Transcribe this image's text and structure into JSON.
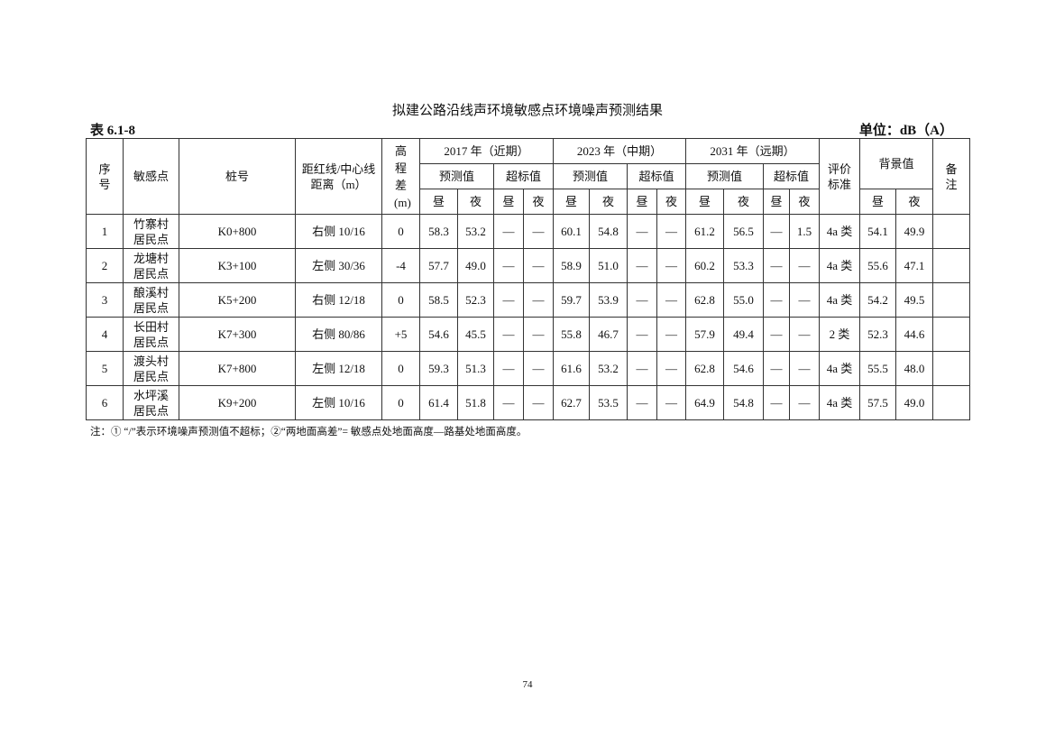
{
  "title": "拟建公路沿线声环境敏感点环境噪声预测结果",
  "table_no": "表 6.1-8",
  "unit": "单位：dB（A）",
  "headers": {
    "seq": "序号",
    "point": "敏感点",
    "stake": "桩号",
    "distance": "距红线/中心线距离（m）",
    "height": "高程差(m)",
    "p2017": "2017 年（近期）",
    "p2023": "2023 年（中期）",
    "p2031": "2031 年（远期）",
    "pred": "预测值",
    "exceed": "超标值",
    "day": "昼",
    "night": "夜",
    "standard": "评价标准",
    "background": "背景值",
    "remark": "备注"
  },
  "rows": [
    [
      "1",
      "竹寨村居民点",
      "K0+800",
      "右侧 10/16",
      "0",
      "58.3",
      "53.2",
      "—",
      "—",
      "60.1",
      "54.8",
      "—",
      "—",
      "61.2",
      "56.5",
      "—",
      "1.5",
      "4a 类",
      "54.1",
      "49.9",
      ""
    ],
    [
      "2",
      "龙塘村居民点",
      "K3+100",
      "左侧 30/36",
      "-4",
      "57.7",
      "49.0",
      "—",
      "—",
      "58.9",
      "51.0",
      "—",
      "—",
      "60.2",
      "53.3",
      "—",
      "—",
      "4a 类",
      "55.6",
      "47.1",
      ""
    ],
    [
      "3",
      "酿溪村居民点",
      "K5+200",
      "右侧 12/18",
      "0",
      "58.5",
      "52.3",
      "—",
      "—",
      "59.7",
      "53.9",
      "—",
      "—",
      "62.8",
      "55.0",
      "—",
      "—",
      "4a 类",
      "54.2",
      "49.5",
      ""
    ],
    [
      "4",
      "长田村居民点",
      "K7+300",
      "右侧 80/86",
      "+5",
      "54.6",
      "45.5",
      "—",
      "—",
      "55.8",
      "46.7",
      "—",
      "—",
      "57.9",
      "49.4",
      "—",
      "—",
      "2 类",
      "52.3",
      "44.6",
      ""
    ],
    [
      "5",
      "渡头村居民点",
      "K7+800",
      "左侧 12/18",
      "0",
      "59.3",
      "51.3",
      "—",
      "—",
      "61.6",
      "53.2",
      "—",
      "—",
      "62.8",
      "54.6",
      "—",
      "—",
      "4a 类",
      "55.5",
      "48.0",
      ""
    ],
    [
      "6",
      "水坪溪居民点",
      "K9+200",
      "左侧 10/16",
      "0",
      "61.4",
      "51.8",
      "—",
      "—",
      "62.7",
      "53.5",
      "—",
      "—",
      "64.9",
      "54.8",
      "—",
      "—",
      "4a 类",
      "57.5",
      "49.0",
      ""
    ]
  ],
  "note": "注：① “/”表示环境噪声预测值不超标；②“两地面高差”= 敏感点处地面高度—路基处地面高度。",
  "page_number": "74"
}
